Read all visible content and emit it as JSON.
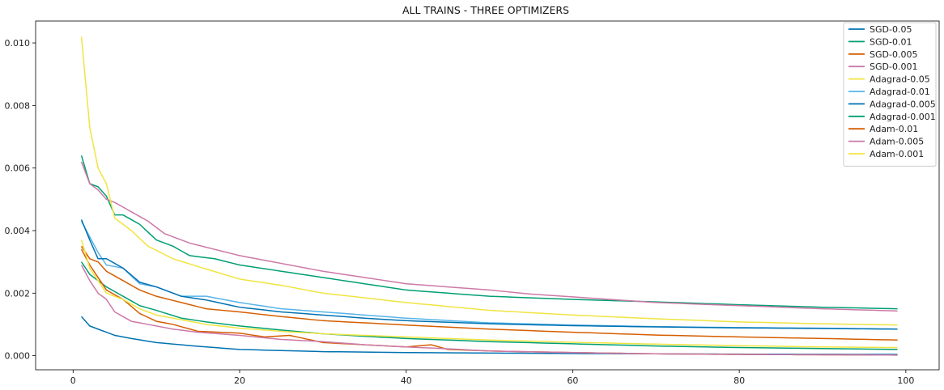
{
  "chart_data": {
    "type": "line",
    "title": "ALL TRAINS - THREE OPTIMIZERS",
    "xlabel": "",
    "ylabel": "",
    "xlim": [
      -4.5,
      104
    ],
    "ylim": [
      -0.00045,
      0.0107
    ],
    "xticks": [
      0,
      20,
      40,
      60,
      80,
      100
    ],
    "yticks": [
      0.0,
      0.002,
      0.004,
      0.006,
      0.008,
      0.01
    ],
    "ytick_labels": [
      "0.000",
      "0.002",
      "0.004",
      "0.006",
      "0.008",
      "0.010"
    ],
    "grid": false,
    "legend": "top-right",
    "x_start": 1,
    "x_end": 99,
    "series": [
      {
        "name": "SGD-0.05",
        "color": "#0072b2",
        "anchors": [
          [
            1,
            0.00125
          ],
          [
            2,
            0.00095
          ],
          [
            3,
            0.00085
          ],
          [
            4,
            0.00075
          ],
          [
            5,
            0.00065
          ],
          [
            7,
            0.00055
          ],
          [
            10,
            0.00042
          ],
          [
            15,
            0.0003
          ],
          [
            20,
            0.0002
          ],
          [
            30,
            0.00013
          ],
          [
            40,
            0.0001
          ],
          [
            60,
            7e-05
          ],
          [
            80,
            5e-05
          ],
          [
            99,
            4e-05
          ]
        ]
      },
      {
        "name": "SGD-0.01",
        "color": "#009e73",
        "anchors": [
          [
            1,
            0.0064
          ],
          [
            2,
            0.0055
          ],
          [
            3,
            0.0054
          ],
          [
            4,
            0.0051
          ],
          [
            5,
            0.0045
          ],
          [
            6,
            0.0045
          ],
          [
            8,
            0.0042
          ],
          [
            10,
            0.0037
          ],
          [
            12,
            0.0035
          ],
          [
            14,
            0.0032
          ],
          [
            17,
            0.0031
          ],
          [
            20,
            0.0029
          ],
          [
            25,
            0.0027
          ],
          [
            30,
            0.0025
          ],
          [
            35,
            0.0023
          ],
          [
            40,
            0.0021
          ],
          [
            45,
            0.002
          ],
          [
            50,
            0.0019
          ],
          [
            55,
            0.00185
          ],
          [
            60,
            0.0018
          ],
          [
            70,
            0.00172
          ],
          [
            80,
            0.00163
          ],
          [
            90,
            0.00155
          ],
          [
            99,
            0.0015
          ]
        ]
      },
      {
        "name": "SGD-0.005",
        "color": "#d55e00",
        "anchors": [
          [
            1,
            0.0035
          ],
          [
            2,
            0.0031
          ],
          [
            3,
            0.003
          ],
          [
            4,
            0.0027
          ],
          [
            6,
            0.0024
          ],
          [
            8,
            0.0021
          ],
          [
            10,
            0.0019
          ],
          [
            13,
            0.0017
          ],
          [
            16,
            0.0015
          ],
          [
            20,
            0.0014
          ],
          [
            25,
            0.00125
          ],
          [
            30,
            0.00112
          ],
          [
            40,
            0.00098
          ],
          [
            50,
            0.00085
          ],
          [
            60,
            0.00075
          ],
          [
            70,
            0.00066
          ],
          [
            80,
            0.0006
          ],
          [
            90,
            0.00055
          ],
          [
            99,
            0.0005
          ]
        ]
      },
      {
        "name": "SGD-0.001",
        "color": "#cc79a7",
        "anchors": [
          [
            1,
            0.0062
          ],
          [
            2,
            0.0055
          ],
          [
            3,
            0.0053
          ],
          [
            4,
            0.005
          ],
          [
            5,
            0.0049
          ],
          [
            7,
            0.0046
          ],
          [
            9,
            0.0043
          ],
          [
            11,
            0.0039
          ],
          [
            14,
            0.0036
          ],
          [
            17,
            0.0034
          ],
          [
            20,
            0.0032
          ],
          [
            25,
            0.00295
          ],
          [
            30,
            0.0027
          ],
          [
            35,
            0.0025
          ],
          [
            40,
            0.0023
          ],
          [
            45,
            0.0022
          ],
          [
            50,
            0.0021
          ],
          [
            55,
            0.00197
          ],
          [
            60,
            0.00188
          ],
          [
            70,
            0.0017
          ],
          [
            80,
            0.0016
          ],
          [
            90,
            0.0015
          ],
          [
            99,
            0.00143
          ]
        ]
      },
      {
        "name": "Adagrad-0.05",
        "color": "#f0e442",
        "anchors": [
          [
            1,
            0.0102
          ],
          [
            2,
            0.0073
          ],
          [
            3,
            0.006
          ],
          [
            4,
            0.0055
          ],
          [
            5,
            0.0044
          ],
          [
            7,
            0.004
          ],
          [
            9,
            0.0035
          ],
          [
            12,
            0.0031
          ],
          [
            15,
            0.00285
          ],
          [
            20,
            0.00245
          ],
          [
            25,
            0.00225
          ],
          [
            30,
            0.002
          ],
          [
            35,
            0.00185
          ],
          [
            40,
            0.0017
          ],
          [
            50,
            0.00145
          ],
          [
            60,
            0.0013
          ],
          [
            70,
            0.00118
          ],
          [
            80,
            0.00108
          ],
          [
            90,
            0.00102
          ],
          [
            99,
            0.00098
          ]
        ]
      },
      {
        "name": "Adagrad-0.01",
        "color": "#56b4e9",
        "anchors": [
          [
            1,
            0.0043
          ],
          [
            2,
            0.0038
          ],
          [
            3,
            0.0033
          ],
          [
            4,
            0.0029
          ],
          [
            6,
            0.0028
          ],
          [
            8,
            0.0023
          ],
          [
            10,
            0.0022
          ],
          [
            13,
            0.0019
          ],
          [
            16,
            0.0019
          ],
          [
            20,
            0.0017
          ],
          [
            25,
            0.0015
          ],
          [
            30,
            0.0014
          ],
          [
            35,
            0.0013
          ],
          [
            40,
            0.0012
          ],
          [
            50,
            0.00105
          ],
          [
            60,
            0.00098
          ],
          [
            70,
            0.00093
          ],
          [
            80,
            0.0009
          ],
          [
            90,
            0.00088
          ],
          [
            99,
            0.00085
          ]
        ]
      },
      {
        "name": "Adagrad-0.005",
        "color": "#0072b2",
        "anchors": [
          [
            1,
            0.00435
          ],
          [
            2,
            0.0037
          ],
          [
            3,
            0.0031
          ],
          [
            4,
            0.0031
          ],
          [
            6,
            0.0028
          ],
          [
            8,
            0.00235
          ],
          [
            10,
            0.0022
          ],
          [
            13,
            0.0019
          ],
          [
            16,
            0.00178
          ],
          [
            20,
            0.00155
          ],
          [
            25,
            0.0014
          ],
          [
            30,
            0.0013
          ],
          [
            35,
            0.0012
          ],
          [
            40,
            0.00112
          ],
          [
            50,
            0.00102
          ],
          [
            60,
            0.00096
          ],
          [
            70,
            0.00092
          ],
          [
            80,
            0.00089
          ],
          [
            90,
            0.00087
          ],
          [
            99,
            0.00085
          ]
        ]
      },
      {
        "name": "Adagrad-0.001",
        "color": "#009e73",
        "anchors": [
          [
            1,
            0.003
          ],
          [
            2,
            0.0026
          ],
          [
            3,
            0.0024
          ],
          [
            4,
            0.0022
          ],
          [
            6,
            0.0019
          ],
          [
            8,
            0.0016
          ],
          [
            10,
            0.00145
          ],
          [
            13,
            0.0012
          ],
          [
            16,
            0.00108
          ],
          [
            20,
            0.00095
          ],
          [
            25,
            0.00082
          ],
          [
            30,
            0.0007
          ],
          [
            35,
            0.00062
          ],
          [
            40,
            0.00055
          ],
          [
            50,
            0.00045
          ],
          [
            60,
            0.00038
          ],
          [
            70,
            0.00031
          ],
          [
            80,
            0.00026
          ],
          [
            90,
            0.00023
          ],
          [
            99,
            0.0002
          ]
        ]
      },
      {
        "name": "Adam-0.01",
        "color": "#d55e00",
        "anchors": [
          [
            1,
            0.0034
          ],
          [
            2,
            0.0029
          ],
          [
            3,
            0.0025
          ],
          [
            4,
            0.0021
          ],
          [
            6,
            0.0018
          ],
          [
            8,
            0.00135
          ],
          [
            10,
            0.0011
          ],
          [
            12,
            0.001
          ],
          [
            15,
            0.00078
          ],
          [
            20,
            0.00072
          ],
          [
            23,
            0.0006
          ],
          [
            26,
            0.00065
          ],
          [
            30,
            0.00042
          ],
          [
            35,
            0.00035
          ],
          [
            40,
            0.00028
          ],
          [
            43,
            0.00035
          ],
          [
            45,
            0.0002
          ],
          [
            50,
            0.00015
          ],
          [
            60,
            0.0001
          ],
          [
            70,
            6e-05
          ],
          [
            80,
            4e-05
          ],
          [
            99,
            2e-05
          ]
        ]
      },
      {
        "name": "Adam-0.005",
        "color": "#cc79a7",
        "anchors": [
          [
            1,
            0.0029
          ],
          [
            2,
            0.0024
          ],
          [
            3,
            0.002
          ],
          [
            4,
            0.0018
          ],
          [
            5,
            0.0014
          ],
          [
            7,
            0.0011
          ],
          [
            9,
            0.001
          ],
          [
            12,
            0.00085
          ],
          [
            15,
            0.00075
          ],
          [
            20,
            0.00065
          ],
          [
            25,
            0.00052
          ],
          [
            30,
            0.00045
          ],
          [
            35,
            0.00035
          ],
          [
            40,
            0.00028
          ],
          [
            45,
            0.00022
          ],
          [
            50,
            0.00015
          ],
          [
            60,
            0.0001
          ],
          [
            70,
            6e-05
          ],
          [
            80,
            4e-05
          ],
          [
            99,
            2e-05
          ]
        ]
      },
      {
        "name": "Adam-0.001",
        "color": "#f0e442",
        "anchors": [
          [
            1,
            0.0037
          ],
          [
            2,
            0.0028
          ],
          [
            3,
            0.0024
          ],
          [
            4,
            0.002
          ],
          [
            6,
            0.0018
          ],
          [
            8,
            0.0015
          ],
          [
            10,
            0.0013
          ],
          [
            13,
            0.00115
          ],
          [
            16,
            0.001
          ],
          [
            20,
            0.00088
          ],
          [
            25,
            0.00078
          ],
          [
            30,
            0.0007
          ],
          [
            35,
            0.00065
          ],
          [
            40,
            0.0006
          ],
          [
            50,
            0.0005
          ],
          [
            60,
            0.00043
          ],
          [
            70,
            0.00037
          ],
          [
            80,
            0.00032
          ],
          [
            90,
            0.00028
          ],
          [
            99,
            0.00026
          ]
        ]
      }
    ]
  }
}
